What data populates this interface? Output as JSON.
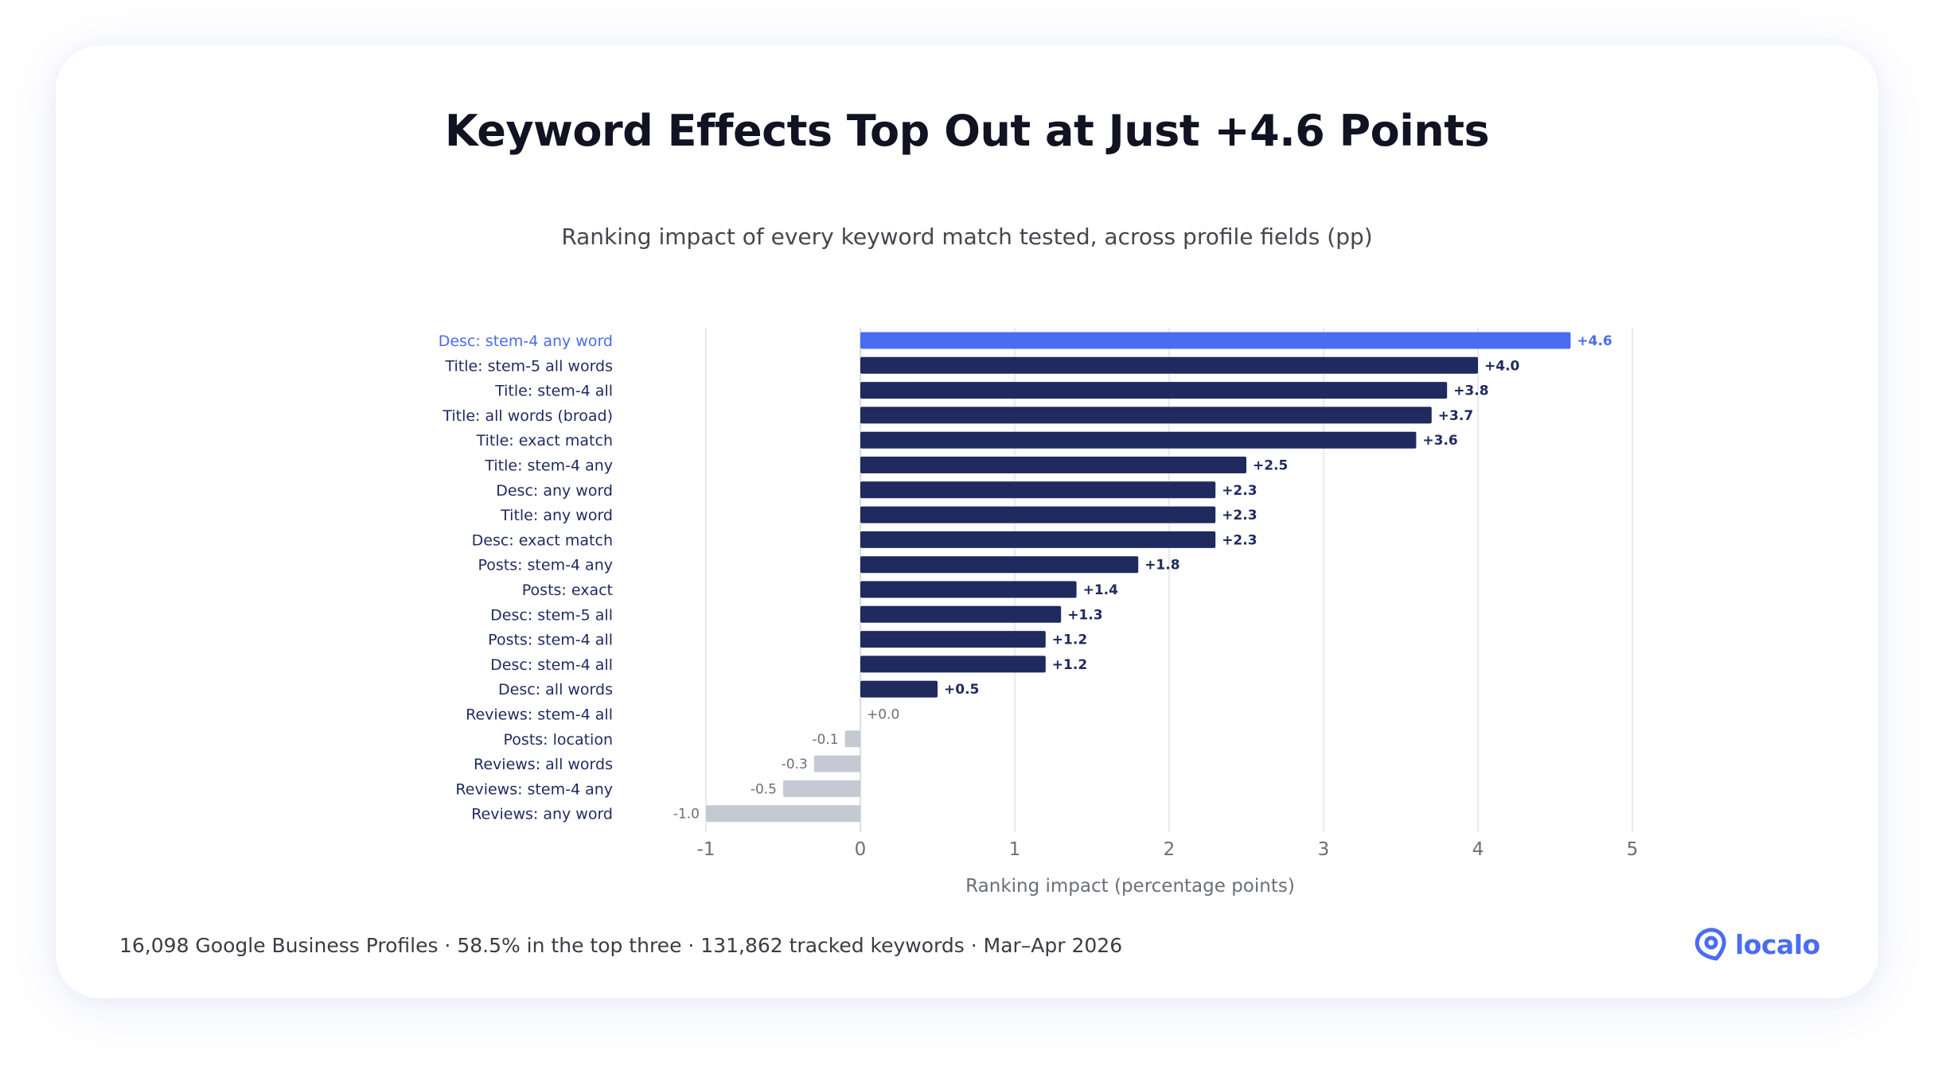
{
  "colors": {
    "highlight": "#4a6cf0",
    "primary": "#1f2a5e",
    "negative": "#c5c9d4",
    "grid": "#e3e4e8",
    "label_dark": "#1f2a5e",
    "label_muted": "#6b6e78",
    "axis_text": "#6b6e78",
    "brand": "#4a6cf0"
  },
  "brand": {
    "name": "localo",
    "icon": "location-pin-icon"
  },
  "footer": "16,098 Google Business Profiles · 58.5% in the top three · 131,862 tracked keywords · Mar–Apr 2026",
  "chart_data": {
    "type": "bar",
    "orientation": "horizontal",
    "title": "Keyword Effects Top Out at Just +4.6 Points",
    "subtitle": "Ranking impact of every keyword match tested, across profile fields (pp)",
    "xlabel": "Ranking impact (percentage points)",
    "xlim": [
      -1,
      5
    ],
    "xticks": [
      -1,
      0,
      1,
      2,
      3,
      4,
      5
    ],
    "grid": "vertical",
    "highlighted_category": "Desc: stem-4 any word",
    "categories": [
      "Desc: stem-4 any word",
      "Title: stem-5 all words",
      "Title: stem-4 all",
      "Title: all words (broad)",
      "Title: exact match",
      "Title: stem-4 any",
      "Desc: any word",
      "Title: any word",
      "Desc: exact match",
      "Posts: stem-4 any",
      "Posts: exact",
      "Desc: stem-5 all",
      "Posts: stem-4 all",
      "Desc: stem-4 all",
      "Desc: all words",
      "Reviews: stem-4 all",
      "Posts: location",
      "Reviews: all words",
      "Reviews: stem-4 any",
      "Reviews: any word"
    ],
    "values": [
      4.6,
      4.0,
      3.8,
      3.7,
      3.6,
      2.5,
      2.3,
      2.3,
      2.3,
      1.8,
      1.4,
      1.3,
      1.2,
      1.2,
      0.5,
      0.0,
      -0.1,
      -0.3,
      -0.5,
      -1.0
    ],
    "data_labels": [
      "+4.6",
      "+4.0",
      "+3.8",
      "+3.7",
      "+3.6",
      "+2.5",
      "+2.3",
      "+2.3",
      "+2.3",
      "+1.8",
      "+1.4",
      "+1.3",
      "+1.2",
      "+1.2",
      "+0.5",
      "+0.0",
      "-0.1",
      "-0.3",
      "-0.5",
      "-1.0"
    ]
  }
}
